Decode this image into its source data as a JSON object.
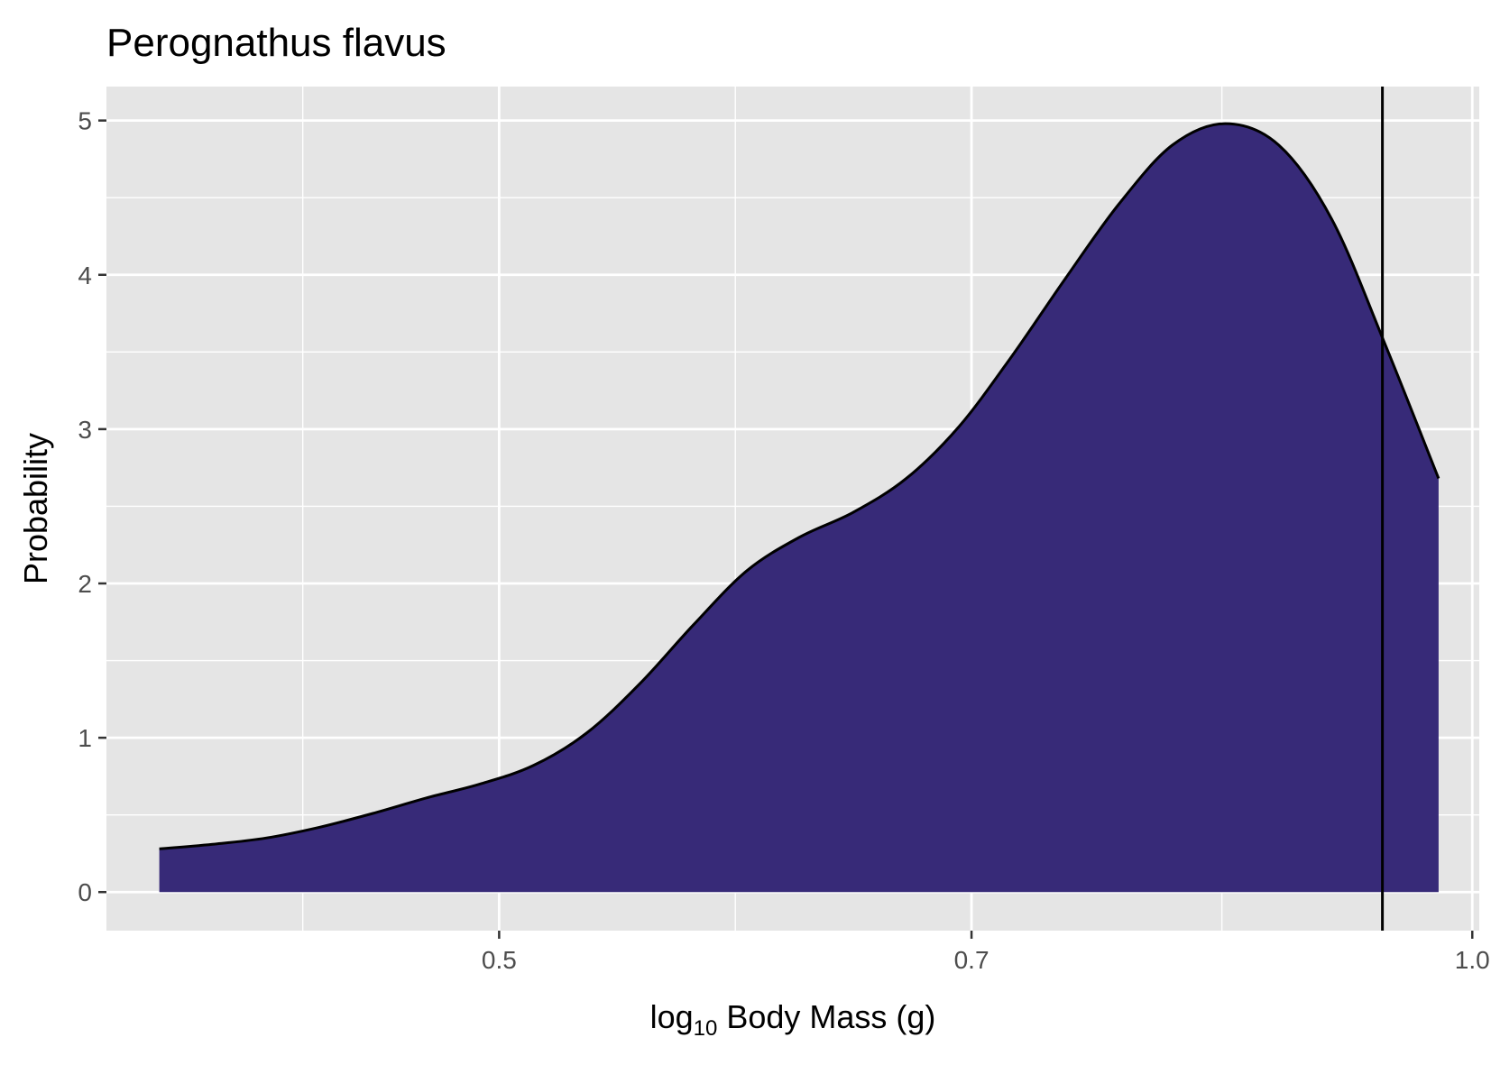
{
  "chart_data": {
    "type": "area",
    "title": "Perognathus flavus",
    "xlabel": {
      "prefix": "log",
      "subscript": "10",
      "rest": " Body Mass ",
      "unit": "(g)"
    },
    "ylabel": "Probability",
    "xaxis": {
      "scale": "log10",
      "ticks": [
        0.5,
        0.7,
        1.0
      ],
      "tick_labels": [
        "0.5",
        "0.7",
        "1.0"
      ],
      "range": [
        0.378,
        1.005
      ]
    },
    "ylim": [
      -0.25,
      5.22
    ],
    "yticks": [
      0,
      1,
      2,
      3,
      4,
      5
    ],
    "ytick_labels": [
      "0",
      "1",
      "2",
      "3",
      "4",
      "5"
    ],
    "grid": true,
    "colors": {
      "fill": "#372a78",
      "line": "#000000",
      "panel": "#e5e5e5",
      "grid": "#ffffff"
    },
    "series": [
      {
        "x": [
          0.3925,
          0.4077,
          0.4235,
          0.4399,
          0.457,
          0.4748,
          0.4932,
          0.5123,
          0.5321,
          0.5527,
          0.5741,
          0.5963,
          0.6193,
          0.6433,
          0.6682,
          0.694,
          0.7208,
          0.7486,
          0.7776,
          0.8076,
          0.8387,
          0.8713,
          0.9048,
          0.9398,
          0.9763
        ],
        "y": [
          0.28,
          0.31,
          0.35,
          0.42,
          0.51,
          0.61,
          0.7,
          0.82,
          1.03,
          1.35,
          1.73,
          2.08,
          2.3,
          2.46,
          2.68,
          3.02,
          3.48,
          3.98,
          4.46,
          4.84,
          4.98,
          4.84,
          4.36,
          3.55,
          2.68
        ]
      }
    ],
    "vline": {
      "x": 0.938
    }
  }
}
